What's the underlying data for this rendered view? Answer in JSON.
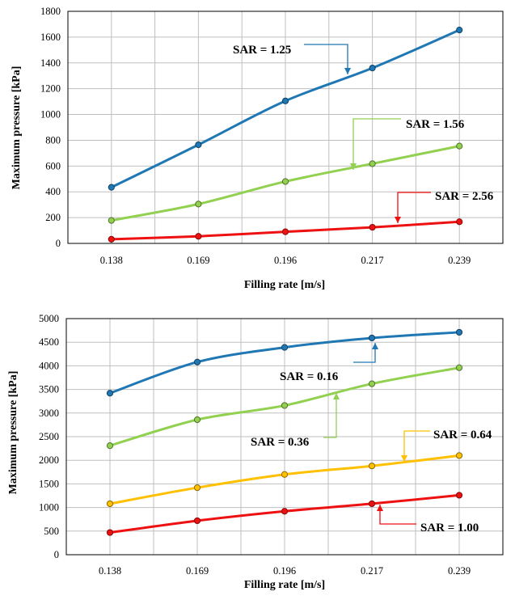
{
  "chart_data": [
    {
      "type": "line",
      "title": "",
      "xlabel": "Filling rate [m/s]",
      "ylabel": "Maximum pressure [kPa]",
      "categories": [
        "0.138",
        "0.169",
        "0.196",
        "0.217",
        "0.239"
      ],
      "ylim": [
        0,
        1800
      ],
      "yticks": [
        0,
        200,
        400,
        600,
        800,
        1000,
        1200,
        1400,
        1600,
        1800
      ],
      "grid": true,
      "series": [
        {
          "name": "SAR = 1.25",
          "color": "#1f77b4",
          "values": [
            435,
            765,
            1105,
            1360,
            1655
          ]
        },
        {
          "name": "SAR = 1.56",
          "color": "#92d050",
          "values": [
            178,
            305,
            480,
            618,
            755
          ]
        },
        {
          "name": "SAR = 2.56",
          "color": "#ee1111",
          "values": [
            32,
            55,
            90,
            125,
            168
          ]
        }
      ]
    },
    {
      "type": "line",
      "title": "",
      "xlabel": "Filling rate [m/s]",
      "ylabel": "Maximum pressure [kPa]",
      "categories": [
        "0.138",
        "0.169",
        "0.196",
        "0.217",
        "0.239"
      ],
      "ylim": [
        0,
        5000
      ],
      "yticks": [
        0,
        500,
        1000,
        1500,
        2000,
        2500,
        3000,
        3500,
        4000,
        4500,
        5000
      ],
      "grid": true,
      "series": [
        {
          "name": "SAR = 0.16",
          "color": "#1f77b4",
          "values": [
            3420,
            4080,
            4390,
            4590,
            4710
          ]
        },
        {
          "name": "SAR = 0.36",
          "color": "#92d050",
          "values": [
            2310,
            2860,
            3160,
            3620,
            3960
          ]
        },
        {
          "name": "SAR = 0.64",
          "color": "#ffc000",
          "values": [
            1080,
            1420,
            1700,
            1880,
            2100
          ]
        },
        {
          "name": "SAR = 1.00",
          "color": "#ee1111",
          "values": [
            470,
            720,
            920,
            1080,
            1260
          ]
        }
      ]
    }
  ]
}
